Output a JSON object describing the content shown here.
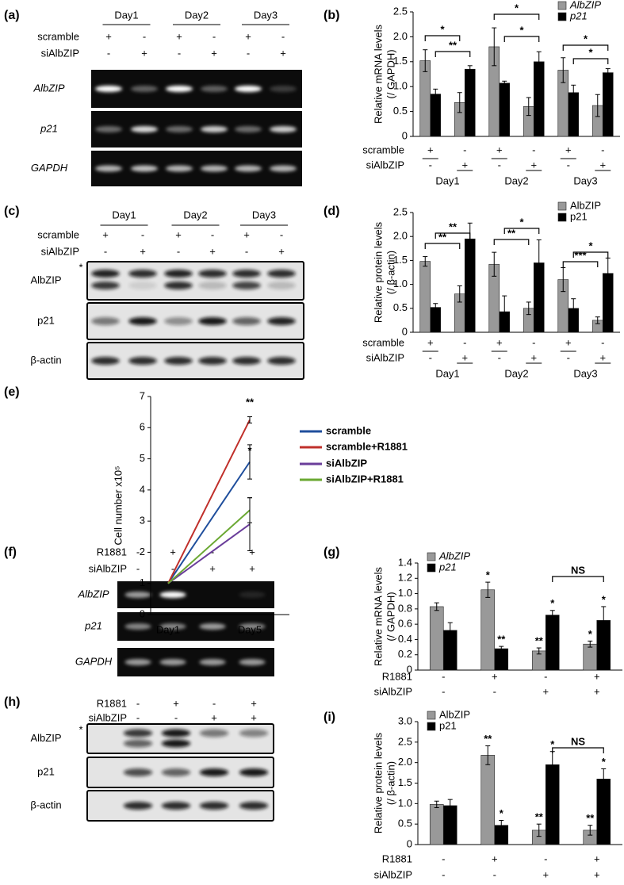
{
  "blots": [
    {
      "panel": "(a)",
      "groups": [
        "Day1",
        "Day2",
        "Day3"
      ],
      "rows": [
        {
          "label": "scramble",
          "values": [
            "+",
            "-",
            "+",
            "-",
            "+",
            "-"
          ]
        },
        {
          "label": "siAlbZIP",
          "values": [
            "-",
            "+",
            "-",
            "+",
            "-",
            "+"
          ]
        }
      ],
      "bands": [
        "AlbZIP",
        "p21",
        "GAPDH"
      ],
      "italic": true
    },
    {
      "panel": "(c)",
      "groups": [
        "Day1",
        "Day2",
        "Day3"
      ],
      "rows": [
        {
          "label": "scramble",
          "values": [
            "+",
            "-",
            "+",
            "-",
            "+",
            "-"
          ]
        },
        {
          "label": "siAlbZIP",
          "values": [
            "-",
            "+",
            "-",
            "+",
            "-",
            "+"
          ]
        }
      ],
      "bands": [
        "AlbZIP",
        "p21",
        "β-actin"
      ],
      "italic": false,
      "marker": "*"
    },
    {
      "panel": "(f)",
      "rows": [
        {
          "label": "R1881",
          "values": [
            "-",
            "+",
            "-",
            "+"
          ]
        },
        {
          "label": "siAlbZIP",
          "values": [
            "-",
            "-",
            "+",
            "+"
          ]
        }
      ],
      "bands": [
        "AlbZIP",
        "p21",
        "GAPDH"
      ],
      "italic": true
    },
    {
      "panel": "(h)",
      "rows": [
        {
          "label": "R1881",
          "values": [
            "-",
            "+",
            "-",
            "+"
          ]
        },
        {
          "label": "siAlbZIP",
          "values": [
            "-",
            "-",
            "+",
            "+"
          ]
        }
      ],
      "bands": [
        "AlbZIP",
        "p21",
        "β-actin"
      ],
      "italic": false,
      "marker": "*"
    }
  ],
  "chart_data": [
    {
      "panel": "(b)",
      "type": "bar",
      "ylabel": [
        "Relative mRNA levels",
        "(/ GAPDH)"
      ],
      "ylim": [
        0,
        2.5
      ],
      "yticks": [
        0,
        0.5,
        {
          "value": 1,
          "label": "1.0"
        },
        1.5,
        {
          "value": 2,
          "label": "2.0"
        },
        2.5
      ],
      "rows": [
        {
          "label": "scramble",
          "values": [
            "+",
            "-",
            "+",
            "-",
            "+",
            "-"
          ]
        },
        {
          "label": "siAlbZIP",
          "values": [
            "-",
            "+",
            "-",
            "+",
            "-",
            "+"
          ]
        }
      ],
      "groups": [
        "Day1",
        "Day2",
        "Day3"
      ],
      "series": [
        {
          "name": "AlbZIP",
          "color": "#999999",
          "values": [
            1.52,
            0.68,
            1.8,
            0.6,
            1.33,
            0.62
          ],
          "errors": [
            0.22,
            0.2,
            0.38,
            0.18,
            0.25,
            0.22
          ]
        },
        {
          "name": "p21",
          "color": "#000000",
          "values": [
            0.85,
            1.35,
            1.07,
            1.5,
            0.88,
            1.28
          ],
          "errors": [
            0.1,
            0.07,
            0.04,
            0.2,
            0.15,
            0.08
          ]
        }
      ],
      "legend": "upper right",
      "legend_italic": true,
      "annotations": [
        "*",
        "**",
        "*",
        "*",
        "*",
        "*"
      ]
    },
    {
      "panel": "(d)",
      "type": "bar",
      "ylabel": [
        "Relative protein levels",
        "(/ β-actin)"
      ],
      "ylim": [
        0,
        2.5
      ],
      "yticks": [
        0,
        0.5,
        {
          "value": 1,
          "label": "1.0"
        },
        1.5,
        {
          "value": 2,
          "label": "2.0"
        },
        2.5
      ],
      "rows": [
        {
          "label": "scramble",
          "values": [
            "+",
            "-",
            "+",
            "-",
            "+",
            "-"
          ]
        },
        {
          "label": "siAlbZIP",
          "values": [
            "-",
            "+",
            "-",
            "+",
            "-",
            "+"
          ]
        }
      ],
      "groups": [
        "Day1",
        "Day2",
        "Day3"
      ],
      "series": [
        {
          "name": "AlbZIP",
          "color": "#999999",
          "values": [
            1.48,
            0.8,
            1.42,
            0.5,
            1.1,
            0.25
          ],
          "errors": [
            0.1,
            0.17,
            0.25,
            0.13,
            0.25,
            0.07
          ]
        },
        {
          "name": "p21",
          "color": "#000000",
          "values": [
            0.52,
            1.95,
            0.43,
            1.45,
            0.5,
            1.23
          ],
          "errors": [
            0.08,
            0.33,
            0.33,
            0.48,
            0.2,
            0.32
          ]
        }
      ],
      "legend": "upper right",
      "legend_italic": false,
      "annotations": [
        "**",
        "**",
        "*",
        "**",
        "*",
        "***"
      ]
    },
    {
      "panel": "(e)",
      "type": "line",
      "ylabel": "Cell number x10⁵",
      "categories": [
        "Day1",
        "Day5"
      ],
      "ylim": [
        0,
        7
      ],
      "yticks": [
        0,
        1,
        2,
        3,
        4,
        5,
        6,
        7
      ],
      "series": [
        {
          "name": "scramble",
          "color": "#1f4e9c",
          "values": [
            1,
            4.9
          ],
          "errors": [
            null,
            0.55
          ]
        },
        {
          "name": "scramble+R1881",
          "color": "#c0302b",
          "values": [
            1,
            6.25
          ],
          "errors": [
            null,
            0.1
          ]
        },
        {
          "name": "siAlbZIP",
          "color": "#6a3d9a",
          "values": [
            1,
            2.9
          ],
          "errors": [
            null,
            0.85
          ]
        },
        {
          "name": "siAlbZIP+R1881",
          "color": "#6aa832",
          "values": [
            1,
            3.35
          ],
          "errors": [
            null,
            0.4
          ]
        }
      ],
      "annotations": [
        "**",
        "*"
      ]
    },
    {
      "panel": "(g)",
      "type": "bar",
      "ylabel": [
        "Relative mRNA levels",
        "(/ GAPDH)"
      ],
      "ylim": [
        0,
        1.4
      ],
      "yticks": [
        0,
        0.2,
        0.4,
        0.6,
        0.8,
        {
          "value": 1,
          "label": "1.0"
        },
        1.2,
        1.4
      ],
      "rows": [
        {
          "label": "R1881",
          "values": [
            "-",
            "+",
            "-",
            "+"
          ]
        },
        {
          "label": "siAlbZIP",
          "values": [
            "-",
            "-",
            "+",
            "+"
          ]
        }
      ],
      "series": [
        {
          "name": "AlbZIP",
          "color": "#999999",
          "values": [
            0.83,
            1.05,
            0.25,
            0.34
          ],
          "errors": [
            0.05,
            0.1,
            0.04,
            0.04
          ],
          "significance": [
            null,
            "*",
            "**",
            "*"
          ]
        },
        {
          "name": "p21",
          "color": "#000000",
          "values": [
            0.52,
            0.28,
            0.72,
            0.65
          ],
          "errors": [
            0.1,
            0.03,
            0.06,
            0.18
          ],
          "significance": [
            null,
            "**",
            "*",
            "*"
          ]
        }
      ],
      "legend": "upper left",
      "legend_italic": true,
      "annotations": [
        "NS"
      ]
    },
    {
      "panel": "(i)",
      "type": "bar",
      "ylabel": [
        "Relative protein levels",
        "(/ β-actin)"
      ],
      "ylim": [
        0,
        3
      ],
      "yticks": [
        0,
        0.5,
        {
          "value": 1,
          "label": "1.0"
        },
        1.5,
        {
          "value": 2,
          "label": "2.0"
        },
        2.5,
        {
          "value": 3,
          "label": "3.0"
        }
      ],
      "rows": [
        {
          "label": "R1881",
          "values": [
            "-",
            "+",
            "-",
            "+"
          ]
        },
        {
          "label": "siAlbZIP",
          "values": [
            "-",
            "-",
            "+",
            "+"
          ]
        }
      ],
      "series": [
        {
          "name": "AlbZIP",
          "color": "#999999",
          "values": [
            0.98,
            2.18,
            0.35,
            0.35
          ],
          "errors": [
            0.08,
            0.23,
            0.15,
            0.12
          ],
          "significance": [
            null,
            "**",
            "**",
            "**"
          ]
        },
        {
          "name": "p21",
          "color": "#000000",
          "values": [
            0.95,
            0.47,
            1.95,
            1.6
          ],
          "errors": [
            0.15,
            0.12,
            0.32,
            0.25
          ],
          "significance": [
            null,
            "*",
            "*",
            "*"
          ]
        }
      ],
      "legend": "upper left",
      "legend_italic": false,
      "annotations": [
        "NS"
      ]
    }
  ]
}
